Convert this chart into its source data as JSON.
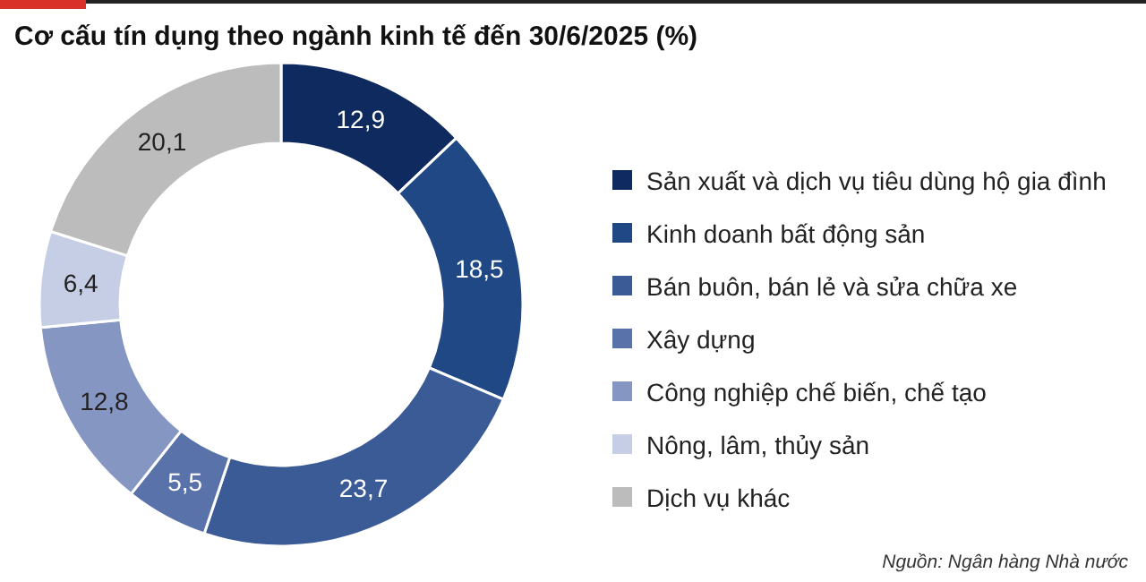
{
  "chart_data": {
    "type": "donut",
    "title": "Cơ cấu tín dụng theo ngành kinh tế đến 30/6/2025 (%)",
    "categories": [
      "Sản xuất và dịch vụ tiêu dùng hộ gia đình",
      "Kinh doanh bất động sản",
      "Bán buôn, bán lẻ và sửa chữa xe",
      "Xây dựng",
      "Công nghiệp chế biến, chế tạo",
      "Nông, lâm, thủy sản",
      "Dịch vụ khác"
    ],
    "values": [
      12.9,
      18.5,
      23.7,
      5.5,
      12.8,
      6.4,
      20.1
    ],
    "colors": [
      "#0e2a5e",
      "#1f4884",
      "#3b5b97",
      "#5a72aa",
      "#8596c3",
      "#c6cee6",
      "#bcbcbc"
    ],
    "value_labels": [
      "12,9",
      "18,5",
      "23,7",
      "5,5",
      "12,8",
      "6,4",
      "20,1"
    ],
    "legend": "right",
    "annotations": [
      "Nguồn: Ngân hàng Nhà nước"
    ]
  }
}
